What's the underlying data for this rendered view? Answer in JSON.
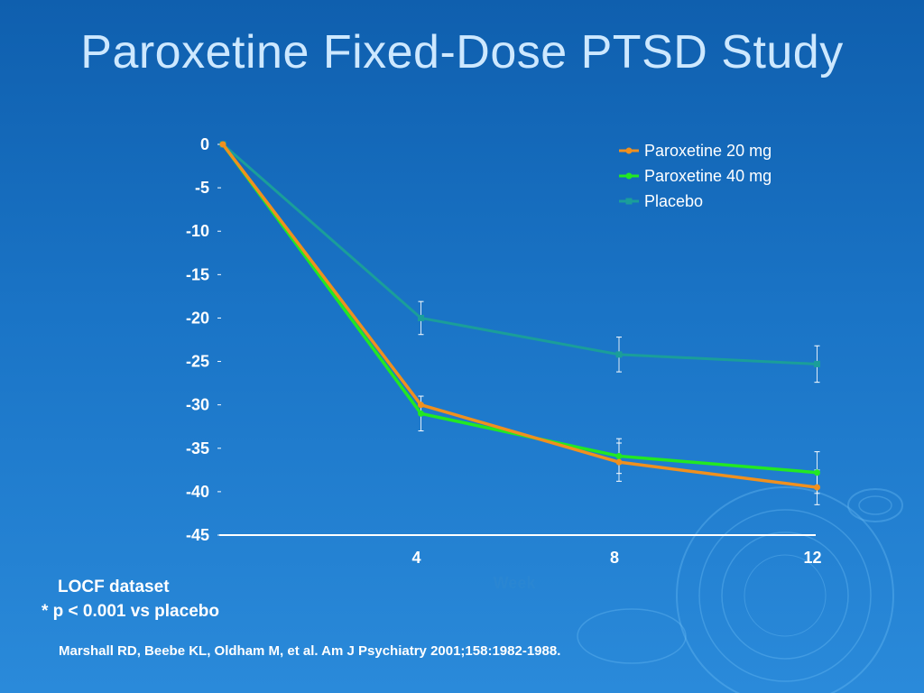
{
  "slide": {
    "title": "Paroxetine Fixed-Dose PTSD Study",
    "footnote_1": "LOCF dataset",
    "footnote_2": "* p < 0.001 vs placebo",
    "citation": "Marshall RD, Beebe KL, Oldham M, et al.  Am J Psychiatry 2001;158:1982-1988."
  },
  "colors": {
    "background_top": "#0f5fae",
    "background_bottom": "#2a8ada",
    "title": "#cde8ff",
    "paroxetine_20": "#f0901e",
    "paroxetine_40": "#22e822",
    "placebo": "#1a9e9a",
    "axis": "#ffffff",
    "xlabel": "#2a86d2"
  },
  "chart_data": {
    "type": "line",
    "x": [
      0,
      4,
      8,
      12
    ],
    "xticks": [
      "4",
      "8",
      "12"
    ],
    "xlabel": "Week",
    "ylabel": "",
    "ylim": [
      -45,
      0
    ],
    "yticks": [
      "0",
      "-5",
      "-10",
      "-15",
      "-20",
      "-25",
      "-30",
      "-35",
      "-40",
      "-45"
    ],
    "grid": false,
    "legend_position": "top-right",
    "series": [
      {
        "name": "Paroxetine 20 mg",
        "color": "#f0901e",
        "values": [
          0,
          -30.0,
          -36.6,
          -39.5
        ],
        "error": [
          null,
          null,
          2.2,
          2.0
        ]
      },
      {
        "name": "Paroxetine 40 mg",
        "color": "#22e822",
        "values": [
          0,
          -31.0,
          -35.9,
          -37.8
        ],
        "error": [
          null,
          2.0,
          2.0,
          2.4
        ]
      },
      {
        "name": "Placebo",
        "color": "#1a9e9a",
        "values": [
          0,
          -20.0,
          -24.2,
          -25.3
        ],
        "error": [
          null,
          1.9,
          2.0,
          2.1
        ]
      }
    ]
  }
}
